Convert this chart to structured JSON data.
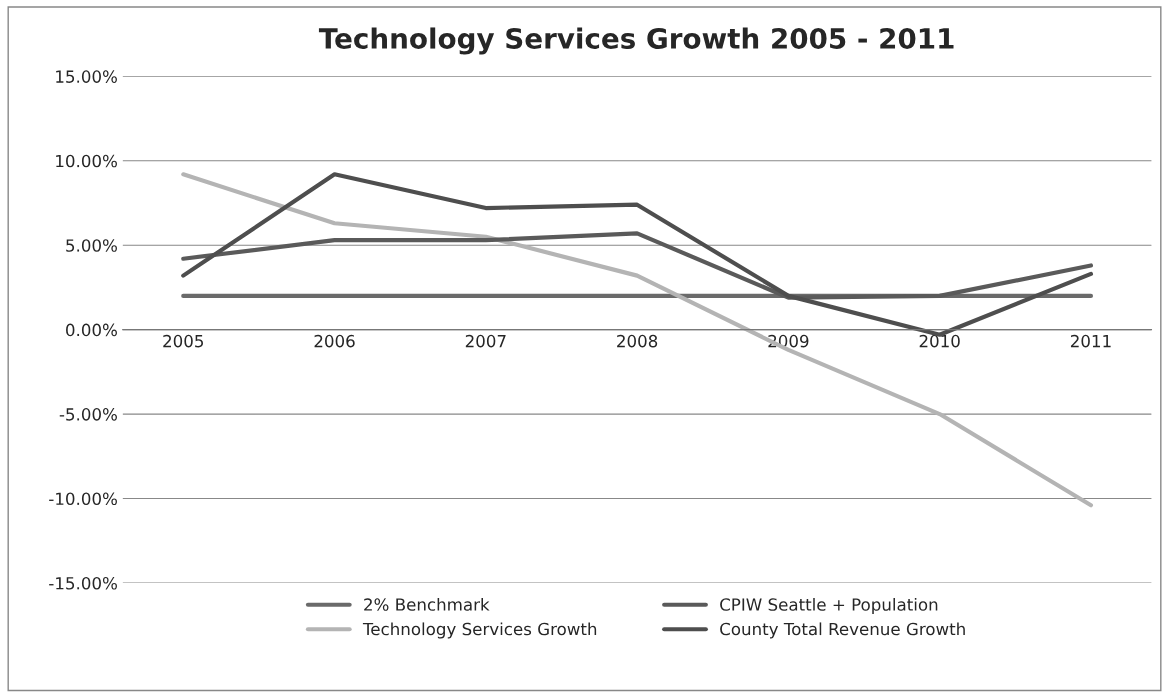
{
  "chart_data": {
    "type": "line",
    "title": "Technology Services Growth 2005 - 2011",
    "categories": [
      "2005",
      "2006",
      "2007",
      "2008",
      "2009",
      "2010",
      "2011"
    ],
    "series": [
      {
        "name": "2% Benchmark",
        "color": "#6a6a6a",
        "values": [
          2.0,
          2.0,
          2.0,
          2.0,
          2.0,
          2.0,
          2.0
        ]
      },
      {
        "name": "Technology Services Growth",
        "color": "#b4b4b4",
        "values": [
          9.2,
          6.3,
          5.5,
          3.2,
          -1.2,
          -5.0,
          -10.4
        ]
      },
      {
        "name": "CPIW Seattle + Population",
        "color": "#5a5a5a",
        "values": [
          4.2,
          5.3,
          5.3,
          5.7,
          1.9,
          2.0,
          3.8
        ]
      },
      {
        "name": "County Total Revenue Growth",
        "color": "#4e4e4e",
        "values": [
          3.2,
          9.2,
          7.2,
          7.4,
          2.0,
          -0.3,
          3.3
        ]
      }
    ],
    "ylim": [
      -15,
      15
    ],
    "yticks": [
      {
        "value": -15,
        "label": "-15.00%"
      },
      {
        "value": -10,
        "label": "-10.00%"
      },
      {
        "value": -5,
        "label": "-5.00%"
      },
      {
        "value": 0,
        "label": "0.00%"
      },
      {
        "value": 5,
        "label": "5.00%"
      },
      {
        "value": 10,
        "label": "10.00%"
      },
      {
        "value": 15,
        "label": "15.00%"
      }
    ],
    "grid": "y",
    "legend": "bottom",
    "marker": "none",
    "line_style": "solid"
  }
}
